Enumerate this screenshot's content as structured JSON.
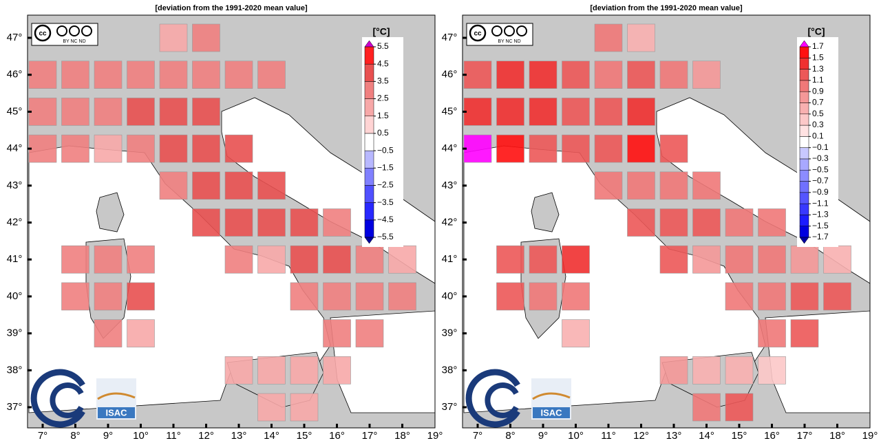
{
  "chart_data": [
    {
      "type": "grid-map",
      "title": "[deviation from the 1991-2020 mean value]",
      "colorbar_label": "[°C]",
      "xticks": [
        {
          "value": 7,
          "label": "7°"
        },
        {
          "value": 8,
          "label": "8°"
        },
        {
          "value": 9,
          "label": "9°"
        },
        {
          "value": 10,
          "label": "10°"
        },
        {
          "value": 11,
          "label": "11°"
        },
        {
          "value": 12,
          "label": "12°"
        },
        {
          "value": 13,
          "label": "13°"
        },
        {
          "value": 14,
          "label": "14°"
        },
        {
          "value": 15,
          "label": "15°"
        },
        {
          "value": 16,
          "label": "16°"
        },
        {
          "value": 17,
          "label": "17°"
        },
        {
          "value": 18,
          "label": "18°"
        },
        {
          "value": 19,
          "label": "19°"
        }
      ],
      "yticks": [
        {
          "value": 37,
          "label": "37°"
        },
        {
          "value": 38,
          "label": "38°"
        },
        {
          "value": 39,
          "label": "39°"
        },
        {
          "value": 40,
          "label": "40°"
        },
        {
          "value": 41,
          "label": "41°"
        },
        {
          "value": 42,
          "label": "42°"
        },
        {
          "value": 43,
          "label": "43°"
        },
        {
          "value": 44,
          "label": "44°"
        },
        {
          "value": 45,
          "label": "45°"
        },
        {
          "value": 46,
          "label": "46°"
        },
        {
          "value": 47,
          "label": "47°"
        }
      ],
      "colorbar_ticks": [
        {
          "value": -5.5,
          "label": "−5.5"
        },
        {
          "value": -4.5,
          "label": "−4.5"
        },
        {
          "value": -3.5,
          "label": "−3.5"
        },
        {
          "value": -2.5,
          "label": "−2.5"
        },
        {
          "value": -1.5,
          "label": "−1.5"
        },
        {
          "value": -0.5,
          "label": "−0.5"
        },
        0.5,
        1.5,
        2.5,
        3.5,
        4.5,
        5.5
      ],
      "colors": [
        "#0000e0",
        "#2828ff",
        "#5050ff",
        "#8080ff",
        "#b8b8ff",
        "#ffffff",
        "#ffd4d4",
        "#f7a8a8",
        "#f08080",
        "#e85050",
        "#ff2020"
      ],
      "under_color": "#0000a0",
      "over_color": "#cc00cc",
      "logos": {
        "cc": "cc",
        "cc_terms": "BY NC ND",
        "institute": "ISAC"
      },
      "cells": [
        [
          11,
          47,
          2
        ],
        [
          12,
          47,
          3
        ],
        [
          7,
          46,
          3
        ],
        [
          8,
          46,
          3
        ],
        [
          9,
          46,
          3
        ],
        [
          10,
          46,
          3
        ],
        [
          11,
          46,
          3
        ],
        [
          12,
          46,
          3
        ],
        [
          13,
          46,
          3
        ],
        [
          14,
          46,
          3
        ],
        [
          7,
          45,
          3
        ],
        [
          8,
          45,
          3
        ],
        [
          9,
          45,
          3
        ],
        [
          10,
          45,
          4
        ],
        [
          11,
          45,
          4
        ],
        [
          12,
          45,
          4
        ],
        [
          7,
          44,
          3
        ],
        [
          8,
          44,
          3
        ],
        [
          9,
          44,
          2
        ],
        [
          10,
          44,
          3
        ],
        [
          11,
          44,
          4
        ],
        [
          12,
          44,
          4
        ],
        [
          13,
          44,
          4
        ],
        [
          11,
          43,
          3
        ],
        [
          12,
          43,
          4
        ],
        [
          13,
          43,
          4
        ],
        [
          14,
          43,
          4
        ],
        [
          12,
          42,
          4
        ],
        [
          13,
          42,
          4
        ],
        [
          14,
          42,
          4
        ],
        [
          15,
          42,
          4
        ],
        [
          16,
          42,
          3
        ],
        [
          8,
          41,
          3
        ],
        [
          9,
          41,
          3
        ],
        [
          10,
          41,
          3
        ],
        [
          13,
          41,
          3
        ],
        [
          14,
          41,
          2
        ],
        [
          15,
          41,
          4
        ],
        [
          16,
          41,
          4
        ],
        [
          17,
          41,
          3
        ],
        [
          18,
          41,
          2
        ],
        [
          8,
          40,
          3
        ],
        [
          9,
          40,
          3
        ],
        [
          10,
          40,
          4
        ],
        [
          15,
          40,
          3
        ],
        [
          16,
          40,
          3
        ],
        [
          17,
          40,
          3
        ],
        [
          18,
          40,
          3
        ],
        [
          9,
          39,
          3
        ],
        [
          10,
          39,
          2
        ],
        [
          16,
          39,
          3
        ],
        [
          17,
          39,
          3
        ],
        [
          13,
          38,
          2
        ],
        [
          14,
          38,
          2
        ],
        [
          15,
          38,
          2
        ],
        [
          16,
          38,
          2
        ],
        [
          14,
          37,
          2
        ],
        [
          15,
          37,
          2
        ]
      ]
    },
    {
      "type": "grid-map",
      "title": "[deviation from the 1991-2020 mean value]",
      "colorbar_label": "[°C]",
      "xticks": [
        {
          "value": 7,
          "label": "7°"
        },
        {
          "value": 8,
          "label": "8°"
        },
        {
          "value": 9,
          "label": "9°"
        },
        {
          "value": 10,
          "label": "10°"
        },
        {
          "value": 11,
          "label": "11°"
        },
        {
          "value": 12,
          "label": "12°"
        },
        {
          "value": 13,
          "label": "13°"
        },
        {
          "value": 14,
          "label": "14°"
        },
        {
          "value": 15,
          "label": "15°"
        },
        {
          "value": 16,
          "label": "16°"
        },
        {
          "value": 17,
          "label": "17°"
        },
        {
          "value": 18,
          "label": "18°"
        },
        {
          "value": 19,
          "label": "19°"
        }
      ],
      "yticks": [
        {
          "value": 37,
          "label": "37°"
        },
        {
          "value": 38,
          "label": "38°"
        },
        {
          "value": 39,
          "label": "39°"
        },
        {
          "value": 40,
          "label": "40°"
        },
        {
          "value": 41,
          "label": "41°"
        },
        {
          "value": 42,
          "label": "42°"
        },
        {
          "value": 43,
          "label": "43°"
        },
        {
          "value": 44,
          "label": "44°"
        },
        {
          "value": 45,
          "label": "45°"
        },
        {
          "value": 46,
          "label": "46°"
        },
        {
          "value": 47,
          "label": "47°"
        }
      ],
      "colorbar_ticks": [
        {
          "value": -1.7,
          "label": "−1.7"
        },
        {
          "value": -1.5,
          "label": "−1.5"
        },
        {
          "value": -1.3,
          "label": "−1.3"
        },
        {
          "value": -1.1,
          "label": "−1.1"
        },
        {
          "value": -0.9,
          "label": "−0.9"
        },
        {
          "value": -0.7,
          "label": "−0.7"
        },
        {
          "value": -0.5,
          "label": "−0.5"
        },
        {
          "value": -0.3,
          "label": "−0.3"
        },
        {
          "value": -0.1,
          "label": "−0.1"
        },
        0.1,
        0.3,
        0.5,
        0.7,
        0.9,
        1.1,
        1.3,
        1.5,
        1.7
      ],
      "colors": [
        "#0000e0",
        "#1c1cff",
        "#3838ff",
        "#5555ff",
        "#7070ff",
        "#8c8cff",
        "#a8a8ff",
        "#c8c8ff",
        "#ffffff",
        "#ffe2e2",
        "#fcc8c8",
        "#f8b0b0",
        "#f49898",
        "#f07878",
        "#ec5858",
        "#f03030",
        "#ff1010"
      ],
      "under_color": "#0000a0",
      "over_color": "#ff00ff",
      "logos": {
        "cc": "cc",
        "cc_terms": "BY NC ND",
        "institute": "ISAC"
      },
      "cells": [
        [
          11,
          47,
          1.0
        ],
        [
          12,
          47,
          0.6
        ],
        [
          7,
          46,
          1.2
        ],
        [
          8,
          46,
          1.4
        ],
        [
          9,
          46,
          1.4
        ],
        [
          10,
          46,
          1.2
        ],
        [
          11,
          46,
          1.0
        ],
        [
          12,
          46,
          1.2
        ],
        [
          13,
          46,
          1.0
        ],
        [
          14,
          46,
          0.8
        ],
        [
          7,
          45,
          1.4
        ],
        [
          8,
          45,
          1.4
        ],
        [
          9,
          45,
          1.4
        ],
        [
          10,
          45,
          1.2
        ],
        [
          11,
          45,
          1.2
        ],
        [
          12,
          45,
          1.4
        ],
        [
          7,
          44,
          1.8
        ],
        [
          8,
          44,
          1.6
        ],
        [
          9,
          44,
          1.2
        ],
        [
          10,
          44,
          1.2
        ],
        [
          11,
          44,
          1.2
        ],
        [
          12,
          44,
          1.6
        ],
        [
          13,
          44,
          1.2
        ],
        [
          11,
          43,
          1.0
        ],
        [
          12,
          43,
          1.0
        ],
        [
          13,
          43,
          1.0
        ],
        [
          14,
          43,
          1.0
        ],
        [
          12,
          42,
          1.2
        ],
        [
          13,
          42,
          1.2
        ],
        [
          14,
          42,
          1.2
        ],
        [
          15,
          42,
          1.0
        ],
        [
          16,
          42,
          1.0
        ],
        [
          8,
          41,
          1.2
        ],
        [
          9,
          41,
          1.2
        ],
        [
          10,
          41,
          1.4
        ],
        [
          13,
          41,
          1.2
        ],
        [
          14,
          41,
          0.8
        ],
        [
          15,
          41,
          1.0
        ],
        [
          16,
          41,
          1.0
        ],
        [
          17,
          41,
          0.8
        ],
        [
          18,
          41,
          0.6
        ],
        [
          8,
          40,
          1.2
        ],
        [
          9,
          40,
          1.0
        ],
        [
          10,
          40,
          1.0
        ],
        [
          15,
          40,
          1.0
        ],
        [
          16,
          40,
          1.0
        ],
        [
          17,
          40,
          1.2
        ],
        [
          18,
          40,
          1.2
        ],
        [
          10,
          39,
          0.6
        ],
        [
          16,
          39,
          1.0
        ],
        [
          17,
          39,
          1.2
        ],
        [
          13,
          38,
          0.8
        ],
        [
          14,
          38,
          0.6
        ],
        [
          15,
          38,
          0.6
        ],
        [
          16,
          38,
          0.4
        ],
        [
          14,
          37,
          1.0
        ],
        [
          15,
          37,
          1.2
        ]
      ]
    }
  ]
}
